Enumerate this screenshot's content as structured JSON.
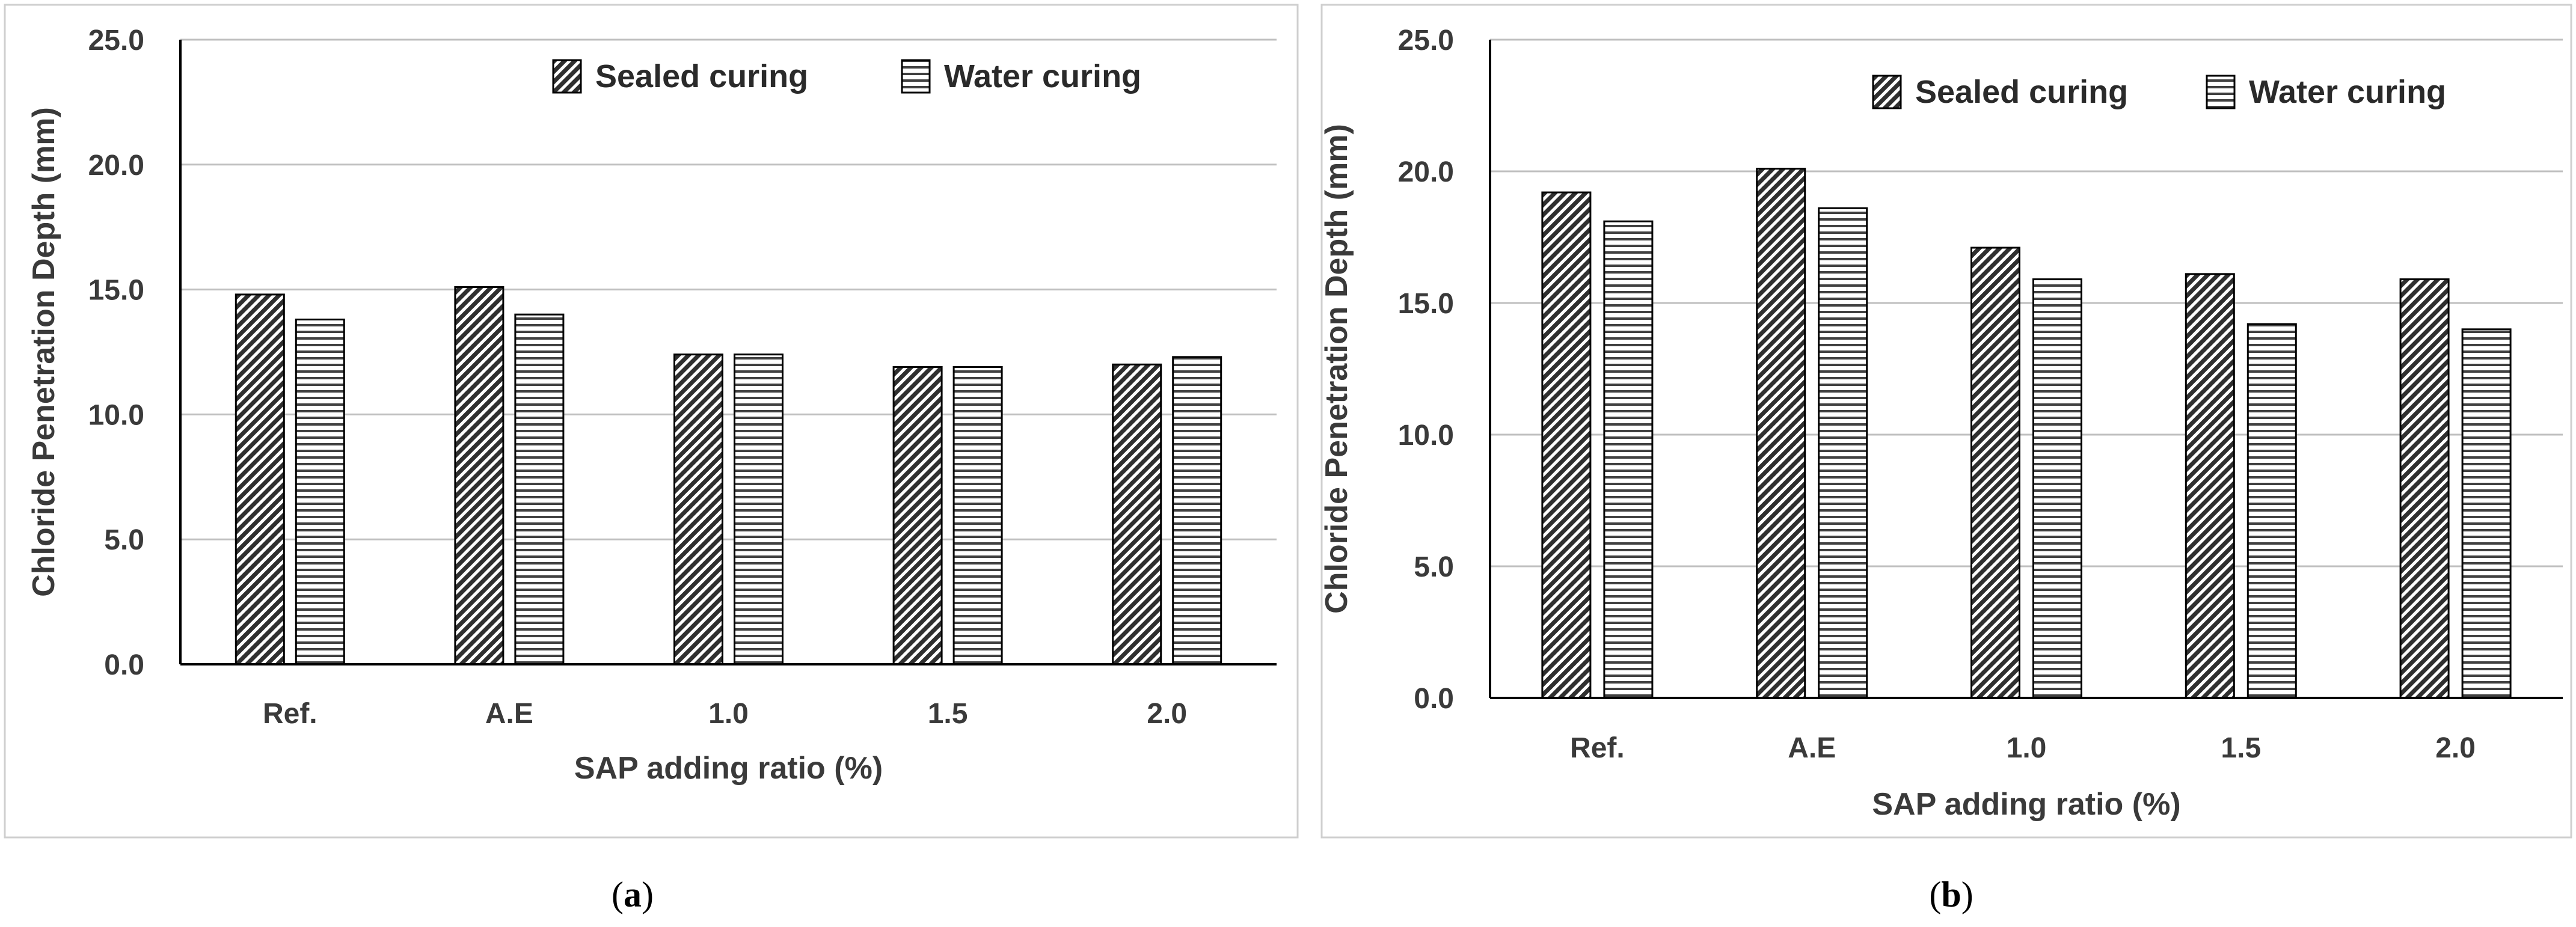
{
  "chart_data": [
    {
      "type": "bar",
      "panel": "a",
      "caption": "a",
      "categories": [
        "Ref.",
        "A.E",
        "1.0",
        "1.5",
        "2.0"
      ],
      "series": [
        {
          "name": "Sealed curing",
          "values": [
            14.8,
            15.1,
            12.4,
            11.9,
            12.0
          ]
        },
        {
          "name": "Water curing",
          "values": [
            13.8,
            14.0,
            12.4,
            11.9,
            12.3
          ]
        }
      ],
      "title": "",
      "xlabel": "SAP adding ratio (%)",
      "ylabel": "Chloride Penetration Depth (mm)",
      "ylim": [
        0,
        25
      ],
      "yticks": [
        "0.0",
        "5.0",
        "10.0",
        "15.0",
        "20.0",
        "25.0"
      ],
      "grid": true,
      "legend": "top-right"
    },
    {
      "type": "bar",
      "panel": "b",
      "caption": "b",
      "categories": [
        "Ref.",
        "A.E",
        "1.0",
        "1.5",
        "2.0"
      ],
      "series": [
        {
          "name": "Sealed curing",
          "values": [
            19.2,
            20.1,
            17.1,
            16.1,
            15.9
          ]
        },
        {
          "name": "Water curing",
          "values": [
            18.1,
            18.6,
            15.9,
            14.2,
            14.0
          ]
        }
      ],
      "title": "",
      "xlabel": "SAP adding ratio (%)",
      "ylabel": "Chloride Penetration Depth (mm)",
      "ylim": [
        0,
        25
      ],
      "yticks": [
        "0.0",
        "5.0",
        "10.0",
        "15.0",
        "20.0",
        "25.0"
      ],
      "grid": true,
      "legend": "top-right"
    }
  ],
  "colors": {
    "sealed_hatch": "#303030",
    "water_hatch": "#404040",
    "grid": "#bfbfbf",
    "axis": "#000000",
    "frame": "#c8c8c8"
  }
}
